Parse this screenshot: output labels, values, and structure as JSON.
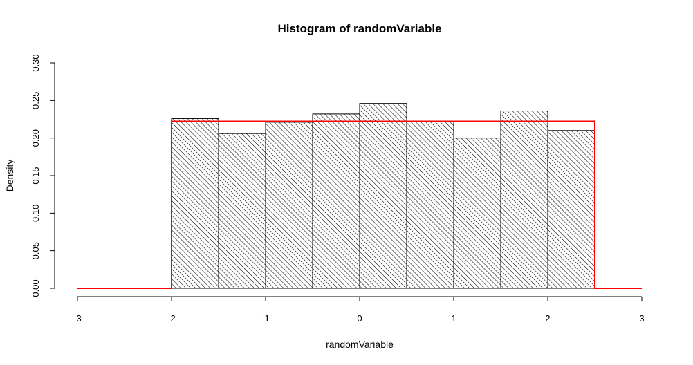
{
  "chart_data": {
    "type": "bar",
    "title": "Histogram of randomVariable",
    "xlabel": "randomVariable",
    "ylabel": "Density",
    "xlim": [
      -3,
      3
    ],
    "ylim": [
      0,
      0.3
    ],
    "x_ticks": [
      "-3",
      "-2",
      "-1",
      "0",
      "1",
      "2",
      "3"
    ],
    "y_ticks": [
      "0.00",
      "0.05",
      "0.10",
      "0.15",
      "0.20",
      "0.25",
      "0.30"
    ],
    "bins": [
      {
        "start": -2.0,
        "end": -1.5,
        "density": 0.226
      },
      {
        "start": -1.5,
        "end": -1.0,
        "density": 0.206
      },
      {
        "start": -1.0,
        "end": -0.5,
        "density": 0.221
      },
      {
        "start": -0.5,
        "end": 0.0,
        "density": 0.232
      },
      {
        "start": 0.0,
        "end": 0.5,
        "density": 0.246
      },
      {
        "start": 0.5,
        "end": 1.0,
        "density": 0.222
      },
      {
        "start": 1.0,
        "end": 1.5,
        "density": 0.2
      },
      {
        "start": 1.5,
        "end": 2.0,
        "density": 0.236
      },
      {
        "start": 2.0,
        "end": 2.5,
        "density": 0.21
      }
    ],
    "overlay_line": {
      "color": "#ff0000",
      "points": [
        [
          -3.0,
          0.0
        ],
        [
          -2.0,
          0.0
        ],
        [
          -2.0,
          0.2222
        ],
        [
          2.5,
          0.2222
        ],
        [
          2.5,
          0.0
        ],
        [
          3.0,
          0.0
        ]
      ]
    },
    "bar_fill": "hatched",
    "grid": false
  }
}
